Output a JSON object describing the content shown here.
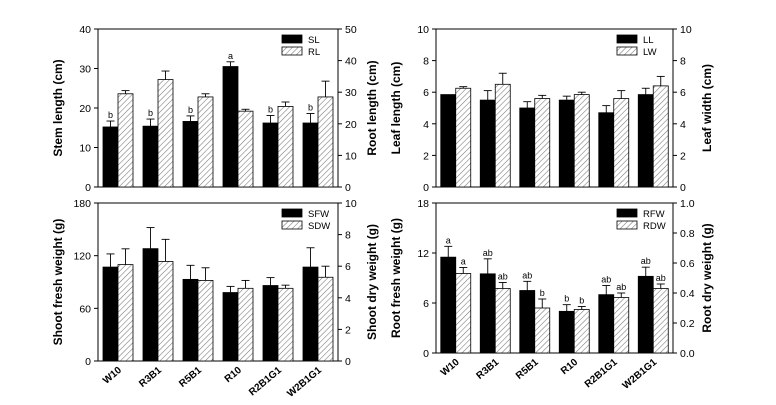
{
  "chart_data": [
    {
      "type": "bar",
      "panel": "stem-root-length",
      "categories": [
        "W10",
        "R3B1",
        "R5B1",
        "R10",
        "R2B1G1",
        "W2B1G1"
      ],
      "ylabel": "Stem length (cm)",
      "y2label": "Root length (cm)",
      "ylim": [
        0,
        40
      ],
      "yticks": [
        0,
        10,
        20,
        30,
        40
      ],
      "y2lim": [
        0,
        50
      ],
      "y2ticks": [
        0,
        10,
        20,
        30,
        40,
        50
      ],
      "legend_position": "top-right",
      "series": [
        {
          "name": "SL",
          "axis": "left",
          "fill": "solid",
          "values": [
            15.2,
            15.4,
            16.6,
            30.5,
            16.2,
            16.2
          ],
          "errors": [
            1.5,
            1.8,
            1.4,
            1.2,
            1.9,
            2.4
          ],
          "labels": [
            "b",
            "b",
            "b",
            "a",
            "b",
            "b"
          ]
        },
        {
          "name": "RL",
          "axis": "right",
          "fill": "hatch",
          "values": [
            29.5,
            34.0,
            28.5,
            24.0,
            25.5,
            28.5
          ],
          "errors": [
            1.0,
            2.7,
            1.0,
            0.6,
            1.4,
            5.0
          ],
          "labels": [
            "",
            "",
            "",
            "",
            "",
            ""
          ]
        }
      ]
    },
    {
      "type": "bar",
      "panel": "leaf-length-width",
      "categories": [
        "W10",
        "R3B1",
        "R5B1",
        "R10",
        "R2B1G1",
        "W2B1G1"
      ],
      "ylabel": "Leaf length (cm)",
      "y2label": "Leaf width (cm)",
      "ylim": [
        0,
        10
      ],
      "yticks": [
        0,
        2,
        4,
        6,
        8,
        10
      ],
      "y2lim": [
        0,
        10
      ],
      "y2ticks": [
        0,
        2,
        4,
        6,
        8,
        10
      ],
      "legend_position": "top-right",
      "series": [
        {
          "name": "LL",
          "axis": "left",
          "fill": "solid",
          "values": [
            5.85,
            5.5,
            5.0,
            5.5,
            4.7,
            5.85
          ],
          "errors": [
            0.0,
            0.6,
            0.4,
            0.25,
            0.45,
            0.4
          ],
          "labels": [
            "",
            "",
            "",
            "",
            "",
            ""
          ]
        },
        {
          "name": "LW",
          "axis": "right",
          "fill": "hatch",
          "values": [
            6.25,
            6.5,
            5.6,
            5.85,
            5.6,
            6.4
          ],
          "errors": [
            0.1,
            0.7,
            0.2,
            0.15,
            0.5,
            0.6
          ],
          "labels": [
            "",
            "",
            "",
            "",
            "",
            ""
          ]
        }
      ]
    },
    {
      "type": "bar",
      "panel": "shoot-weight",
      "categories": [
        "W10",
        "R3B1",
        "R5B1",
        "R10",
        "R2B1G1",
        "W2B1G1"
      ],
      "ylabel": "Shoot fresh weight (g)",
      "y2label": "Shoot dry weight (g)",
      "ylim": [
        0,
        180
      ],
      "yticks": [
        0,
        60,
        120,
        180
      ],
      "y2lim": [
        0,
        10
      ],
      "y2ticks": [
        0,
        2,
        4,
        6,
        8,
        10
      ],
      "legend_position": "top-right",
      "series": [
        {
          "name": "SFW",
          "axis": "left",
          "fill": "solid",
          "values": [
            107,
            128,
            93,
            78,
            86,
            107
          ],
          "errors": [
            15,
            24,
            16,
            7,
            9,
            22
          ],
          "labels": [
            "",
            "",
            "",
            "",
            "",
            ""
          ]
        },
        {
          "name": "SDW",
          "axis": "right",
          "fill": "hatch",
          "values": [
            6.1,
            6.3,
            5.1,
            4.6,
            4.6,
            5.3
          ],
          "errors": [
            1.0,
            1.4,
            0.8,
            0.5,
            0.2,
            0.7
          ],
          "labels": [
            "",
            "",
            "",
            "",
            "",
            ""
          ]
        }
      ]
    },
    {
      "type": "bar",
      "panel": "root-weight",
      "categories": [
        "W10",
        "R3B1",
        "R5B1",
        "R10",
        "R2B1G1",
        "W2B1G1"
      ],
      "ylabel": "Root fresh weight (g)",
      "y2label": "Root dry weight (g)",
      "ylim": [
        0,
        18
      ],
      "yticks": [
        0,
        6,
        12,
        18
      ],
      "y2lim": [
        0,
        1.0
      ],
      "y2ticks": [
        "0.0",
        "0.2",
        "0.4",
        "0.6",
        "0.8",
        "1.0"
      ],
      "legend_position": "top-right",
      "series": [
        {
          "name": "RFW",
          "axis": "left",
          "fill": "solid",
          "values": [
            11.5,
            9.5,
            7.5,
            5.0,
            7.0,
            9.2
          ],
          "errors": [
            1.3,
            1.8,
            1.1,
            0.8,
            1.1,
            1.1
          ],
          "labels": [
            "a",
            "ab",
            "ab",
            "b",
            "ab",
            "ab"
          ]
        },
        {
          "name": "RDW",
          "axis": "right",
          "fill": "hatch",
          "values": [
            0.53,
            0.43,
            0.3,
            0.29,
            0.37,
            0.43
          ],
          "errors": [
            0.04,
            0.04,
            0.06,
            0.02,
            0.03,
            0.03
          ],
          "labels": [
            "a",
            "ab",
            "b",
            "b",
            "ab",
            "ab"
          ]
        }
      ]
    }
  ]
}
